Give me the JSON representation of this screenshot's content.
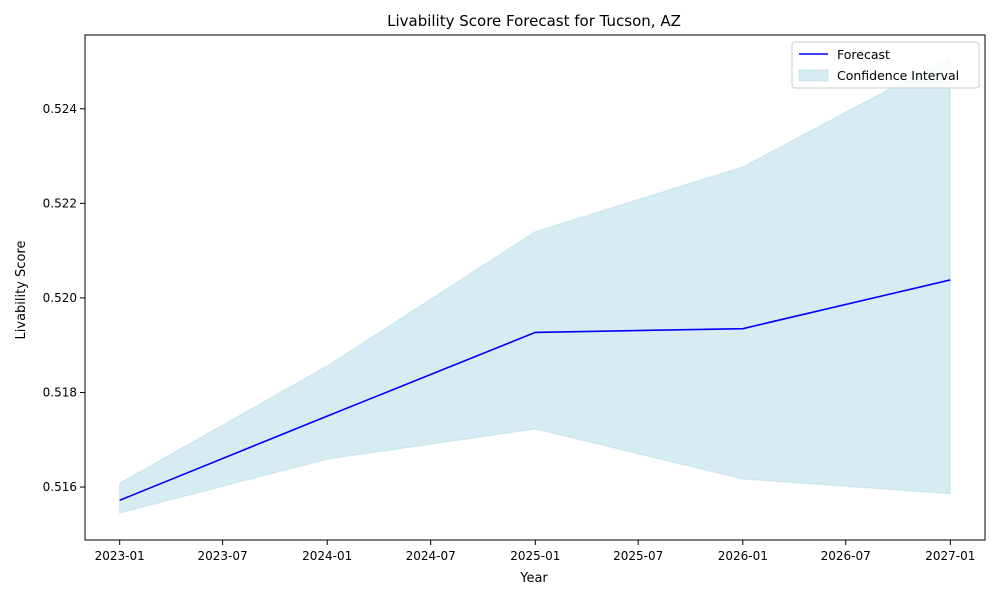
{
  "chart_data": {
    "type": "line",
    "title": "Livability Score Forecast for Tucson, AZ",
    "xlabel": "Year",
    "ylabel": "Livability Score",
    "x": [
      "2023-01-01",
      "2024-01-01",
      "2025-01-01",
      "2026-01-01",
      "2027-01-01"
    ],
    "series": [
      {
        "name": "Forecast",
        "values": [
          0.51572,
          0.5175,
          0.51927,
          0.51935,
          0.52038
        ],
        "color": "#0000ff"
      }
    ],
    "confidence_interval": {
      "name": "Confidence Interval",
      "lower": [
        0.51545,
        0.51659,
        0.51723,
        0.51617,
        0.51586
      ],
      "upper": [
        0.51608,
        0.51856,
        0.5214,
        0.52277,
        0.5251
      ],
      "color": "#add8e6",
      "opacity": 0.5
    },
    "xticks": [
      "2023-01",
      "2023-07",
      "2024-01",
      "2024-07",
      "2025-01",
      "2025-07",
      "2026-01",
      "2026-07",
      "2027-01"
    ],
    "yticks": [
      "0.516",
      "0.518",
      "0.520",
      "0.522",
      "0.524"
    ],
    "xlim": [
      "2022-11-01",
      "2027-03-03"
    ],
    "ylim": [
      0.51488,
      0.52556
    ],
    "grid": false,
    "legend_position": "upper right"
  }
}
